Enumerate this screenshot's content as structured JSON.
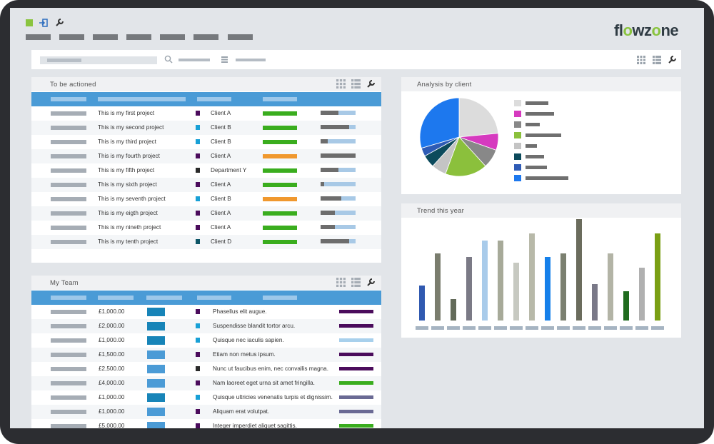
{
  "brand": {
    "logo_left": "fl",
    "logo_o1": "o",
    "logo_mid": "wz",
    "logo_o2": "o",
    "logo_right": "ne"
  },
  "icons": [
    "green-square-icon",
    "login-icon",
    "wrench-icon",
    "search-icon",
    "list-icon",
    "grid-icon",
    "table-icon"
  ],
  "panels": {
    "actioned": {
      "title": "To be actioned"
    },
    "team": {
      "title": "My Team"
    },
    "analysis": {
      "title": "Analysis by client"
    },
    "trend": {
      "title": "Trend this year"
    }
  },
  "projects": [
    {
      "name": "This is my first project",
      "client": "Client A",
      "sq": "#4b0c5c",
      "status": "#3aad1e",
      "prog": 0.5
    },
    {
      "name": "This is my second project",
      "client": "Client B",
      "sq": "#18a0d6",
      "status": "#3aad1e",
      "prog": 0.82
    },
    {
      "name": "This is my third project",
      "client": "Client B",
      "sq": "#18a0d6",
      "status": "#3aad1e",
      "prog": 0.2
    },
    {
      "name": "This is my fourth project",
      "client": "Client A",
      "sq": "#4b0c5c",
      "status": "#f0982e",
      "prog": 1.0
    },
    {
      "name": "This is my fifth project",
      "client": "Department Y",
      "sq": "#2a2a2a",
      "status": "#3aad1e",
      "prog": 0.5
    },
    {
      "name": "This is my sixth project",
      "client": "Client A",
      "sq": "#4b0c5c",
      "status": "#3aad1e",
      "prog": 0.1
    },
    {
      "name": "This is my seventh project",
      "client": "Client B",
      "sq": "#18a0d6",
      "status": "#f0982e",
      "prog": 0.6
    },
    {
      "name": "This is my eigth project",
      "client": "Client A",
      "sq": "#4b0c5c",
      "status": "#3aad1e",
      "prog": 0.4
    },
    {
      "name": "This is my nineth project",
      "client": "Client A",
      "sq": "#4b0c5c",
      "status": "#3aad1e",
      "prog": 0.4
    },
    {
      "name": "This is my tenth project",
      "client": "Client D",
      "sq": "#0d5566",
      "status": "#3aad1e",
      "prog": 0.82
    }
  ],
  "team": [
    {
      "amount": "£1,000.00",
      "blk": "#1784b8",
      "sq": "#4b0c5c",
      "desc": "Phasellus elit augue.",
      "bar": "#4b0c5c"
    },
    {
      "amount": "£2,000.00",
      "blk": "#1784b8",
      "sq": "#18a0d6",
      "desc": "Suspendisse blandit tortor arcu.",
      "bar": "#4b0c5c"
    },
    {
      "amount": "£1,000.00",
      "blk": "#1784b8",
      "sq": "#18a0d6",
      "desc": "Quisque nec iaculis sapien.",
      "bar": "#a8d0ec"
    },
    {
      "amount": "£1,500.00",
      "blk": "#4b9bd6",
      "sq": "#4b0c5c",
      "desc": "Etiam non metus ipsum.",
      "bar": "#4b0c5c"
    },
    {
      "amount": "£2,500.00",
      "blk": "#4b9bd6",
      "sq": "#2a2a2a",
      "desc": "Nunc ut faucibus enim, nec convallis magna.",
      "bar": "#4b0c5c"
    },
    {
      "amount": "£4,000.00",
      "blk": "#4b9bd6",
      "sq": "#4b0c5c",
      "desc": "Nam laoreet eget urna sit amet fringilla.",
      "bar": "#3aad1e"
    },
    {
      "amount": "£1,000.00",
      "blk": "#1784b8",
      "sq": "#18a0d6",
      "desc": "Quisque ultricies venenatis turpis et dignissim.",
      "bar": "#6a6a94"
    },
    {
      "amount": "£1,000.00",
      "blk": "#4b9bd6",
      "sq": "#4b0c5c",
      "desc": "Aliquam erat volutpat.",
      "bar": "#6a6a94"
    },
    {
      "amount": "£5,000.00",
      "blk": "#4b9bd6",
      "sq": "#4b0c5c",
      "desc": "Integer imperdiet aliquet sagittis.",
      "bar": "#3aad1e"
    }
  ],
  "chart_data": [
    {
      "type": "pie",
      "title": "Analysis by client",
      "values": [
        27,
        8,
        9,
        20,
        7,
        6,
        4,
        34
      ],
      "colors": [
        "#dcdcdc",
        "#d63abf",
        "#888888",
        "#8bc03c",
        "#c4c4c4",
        "#0c4a5c",
        "#2e5bb5",
        "#1d78ee"
      ],
      "legend_lengths": [
        0.53,
        0.67,
        0.33,
        0.83,
        0.27,
        0.43,
        0.5,
        1.0
      ]
    },
    {
      "type": "bar",
      "title": "Trend this year",
      "values": [
        48,
        93,
        30,
        88,
        110,
        110,
        80,
        120,
        88,
        93,
        140,
        50,
        93,
        40,
        73,
        120
      ],
      "colors": [
        "#3059b0",
        "#7a7d6e",
        "#636b5a",
        "#7b7a86",
        "#a9cbea",
        "#a7aa99",
        "#c7c9c1",
        "#b8b9a9",
        "#1680ea",
        "#7b8070",
        "#6b6c5d",
        "#7a7988",
        "#b3b4a6",
        "#1f6b1e",
        "#b0b0b0",
        "#7a9f14"
      ],
      "ylim": [
        0,
        140
      ]
    }
  ]
}
